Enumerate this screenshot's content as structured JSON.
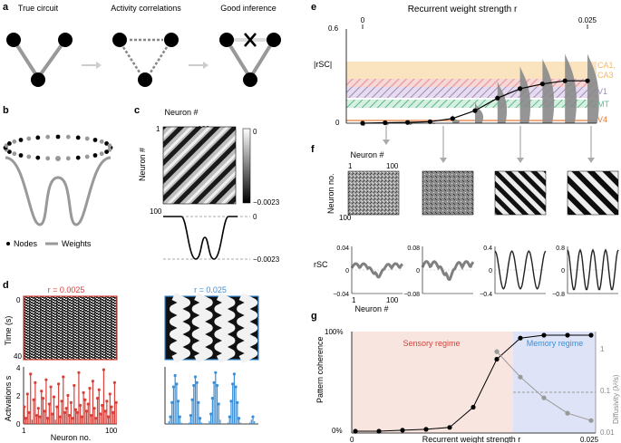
{
  "panels": {
    "a": {
      "letter": "a",
      "titles": [
        "True circuit",
        "Activity correlations",
        "Good inference"
      ]
    },
    "b": {
      "letter": "b",
      "legend_nodes": "Nodes",
      "legend_weights": "Weights"
    },
    "c": {
      "letter": "c",
      "top_label": "Neuron #",
      "side_label": "Neuron #",
      "tick_1": "1",
      "tick_100_x": "100",
      "tick_100_y": "100",
      "colorbar_max": "0",
      "colorbar_min": "−0.0023",
      "profile_zero": "0",
      "profile_min": "−0.0023"
    },
    "d": {
      "letter": "d",
      "left_title": "r = 0.0025",
      "right_title": "r = 0.025",
      "time_label": "Time (s)",
      "time_0": "0",
      "time_40": "40",
      "act_label": "Activations s",
      "act_ticks": [
        "4",
        "2",
        "0"
      ],
      "neuron_label": "Neuron no.",
      "neuron_1": "1",
      "neuron_100": "100"
    },
    "e": {
      "letter": "e",
      "top_axis_label": "Recurrent weight strength r",
      "x_min": "0",
      "x_max": "0.025",
      "y_label": "|rSC|",
      "y_ticks": [
        "0.6",
        "0"
      ],
      "regions": [
        "CA1,",
        "CA3",
        "V1",
        "MT",
        "V4"
      ]
    },
    "f": {
      "letter": "f",
      "top_label": "Neuron #",
      "side_label": "Neuron no.",
      "tick_1": "1",
      "tick_100_x": "100",
      "tick_100_y": "100",
      "rsc_label": "rSC",
      "bottom_label": "Neuron #",
      "bottom_1": "1",
      "bottom_100": "100",
      "scales": [
        [
          "0.04",
          "0",
          "−0.04"
        ],
        [
          "0.08",
          "0",
          "−0.08"
        ],
        [
          "0.4",
          "0",
          "−0.4"
        ],
        [
          "0.8",
          "0",
          "−0.8"
        ]
      ]
    },
    "g": {
      "letter": "g",
      "sensory": "Sensory regime",
      "memory": "Memory regime",
      "y_left_label": "Pattern coherence",
      "y_left_100": "100%",
      "y_left_0": "0%",
      "y_right_label": "Diffusivity (λ²/s)",
      "y_right_ticks": [
        "1",
        "0.1",
        "0.01"
      ],
      "x_label": "Recurrent weight strength r",
      "x_0": "0",
      "x_max": "0.025"
    }
  },
  "colors": {
    "red": "#d8413a",
    "blue": "#3a8fd8",
    "orange": "#f0b865",
    "pink": "#e89a9a",
    "purple": "#a088b8",
    "green": "#5cb88a",
    "grey": "#999999"
  },
  "chart_data": [
    {
      "type": "line",
      "panel": "e",
      "x": [
        0,
        0.0025,
        0.005,
        0.0075,
        0.01,
        0.0125,
        0.015,
        0.0175,
        0.02,
        0.0225,
        0.025
      ],
      "values": [
        0.0,
        0.003,
        0.005,
        0.01,
        0.03,
        0.08,
        0.16,
        0.22,
        0.25,
        0.27,
        0.27
      ],
      "ylim": [
        0,
        0.6
      ],
      "xlim": [
        0,
        0.025
      ]
    },
    {
      "type": "line",
      "panel": "g",
      "x": [
        0,
        0.0025,
        0.005,
        0.0075,
        0.01,
        0.0125,
        0.015,
        0.0175,
        0.02,
        0.0225,
        0.025
      ],
      "series": [
        {
          "values": [
            0.0,
            0.0,
            0.01,
            0.02,
            0.04,
            0.25,
            0.75,
            0.97,
            1.0,
            1.0,
            1.0
          ]
        },
        {
          "values": [
            null,
            null,
            null,
            null,
            null,
            null,
            0.9,
            0.22,
            0.07,
            0.03,
            0.02
          ]
        }
      ],
      "ylim_left": [
        0,
        1
      ],
      "ylim_right": [
        0.01,
        1
      ],
      "xlim": [
        0,
        0.025
      ]
    },
    {
      "type": "bar",
      "panel": "d-left",
      "values": [
        1.2,
        0.4,
        2.1,
        0.8,
        3.5,
        0.3,
        1.7,
        2.9,
        0.6,
        1.1,
        0.5,
        2.3,
        1.8,
        0.9,
        3.1,
        0.4,
        1.4,
        2.6,
        0.7,
        1.9,
        0.3,
        1.2,
        2.8,
        0.5,
        1.6,
        3.3,
        0.8,
        1.1,
        2.0,
        0.6,
        1.5,
        0.4,
        2.7,
        1.0,
        0.8,
        3.6,
        1.3,
        0.5,
        2.2,
        1.7,
        0.9,
        1.4,
        2.5,
        0.6,
        3.0,
        1.1,
        0.4,
        1.8,
        2.4,
        0.7,
        1.3,
        3.8,
        0.9,
        1.6,
        0.5,
        2.1,
        1.2,
        0.8,
        2.9,
        1.5
      ],
      "ylim": [
        0,
        4
      ]
    },
    {
      "type": "bar",
      "panel": "d-right",
      "values": [
        0,
        0,
        0.2,
        0.5,
        1.5,
        2.6,
        3.4,
        2.8,
        1.6,
        0.5,
        0.1,
        0,
        0,
        0,
        0,
        0.1,
        0.6,
        1.7,
        2.7,
        3.3,
        2.9,
        1.5,
        0.4,
        0.1,
        0,
        0,
        0,
        0,
        0.2,
        0.7,
        1.8,
        2.9,
        3.6,
        2.7,
        1.4,
        0.3,
        0,
        0,
        0,
        0,
        0.1,
        0.5,
        1.6,
        2.8,
        3.5,
        2.6,
        1.5,
        0.4,
        0.1,
        0,
        0,
        0,
        0,
        0,
        0.1,
        0.3,
        0.5,
        0.2,
        0,
        0
      ],
      "ylim": [
        0,
        4
      ]
    }
  ]
}
